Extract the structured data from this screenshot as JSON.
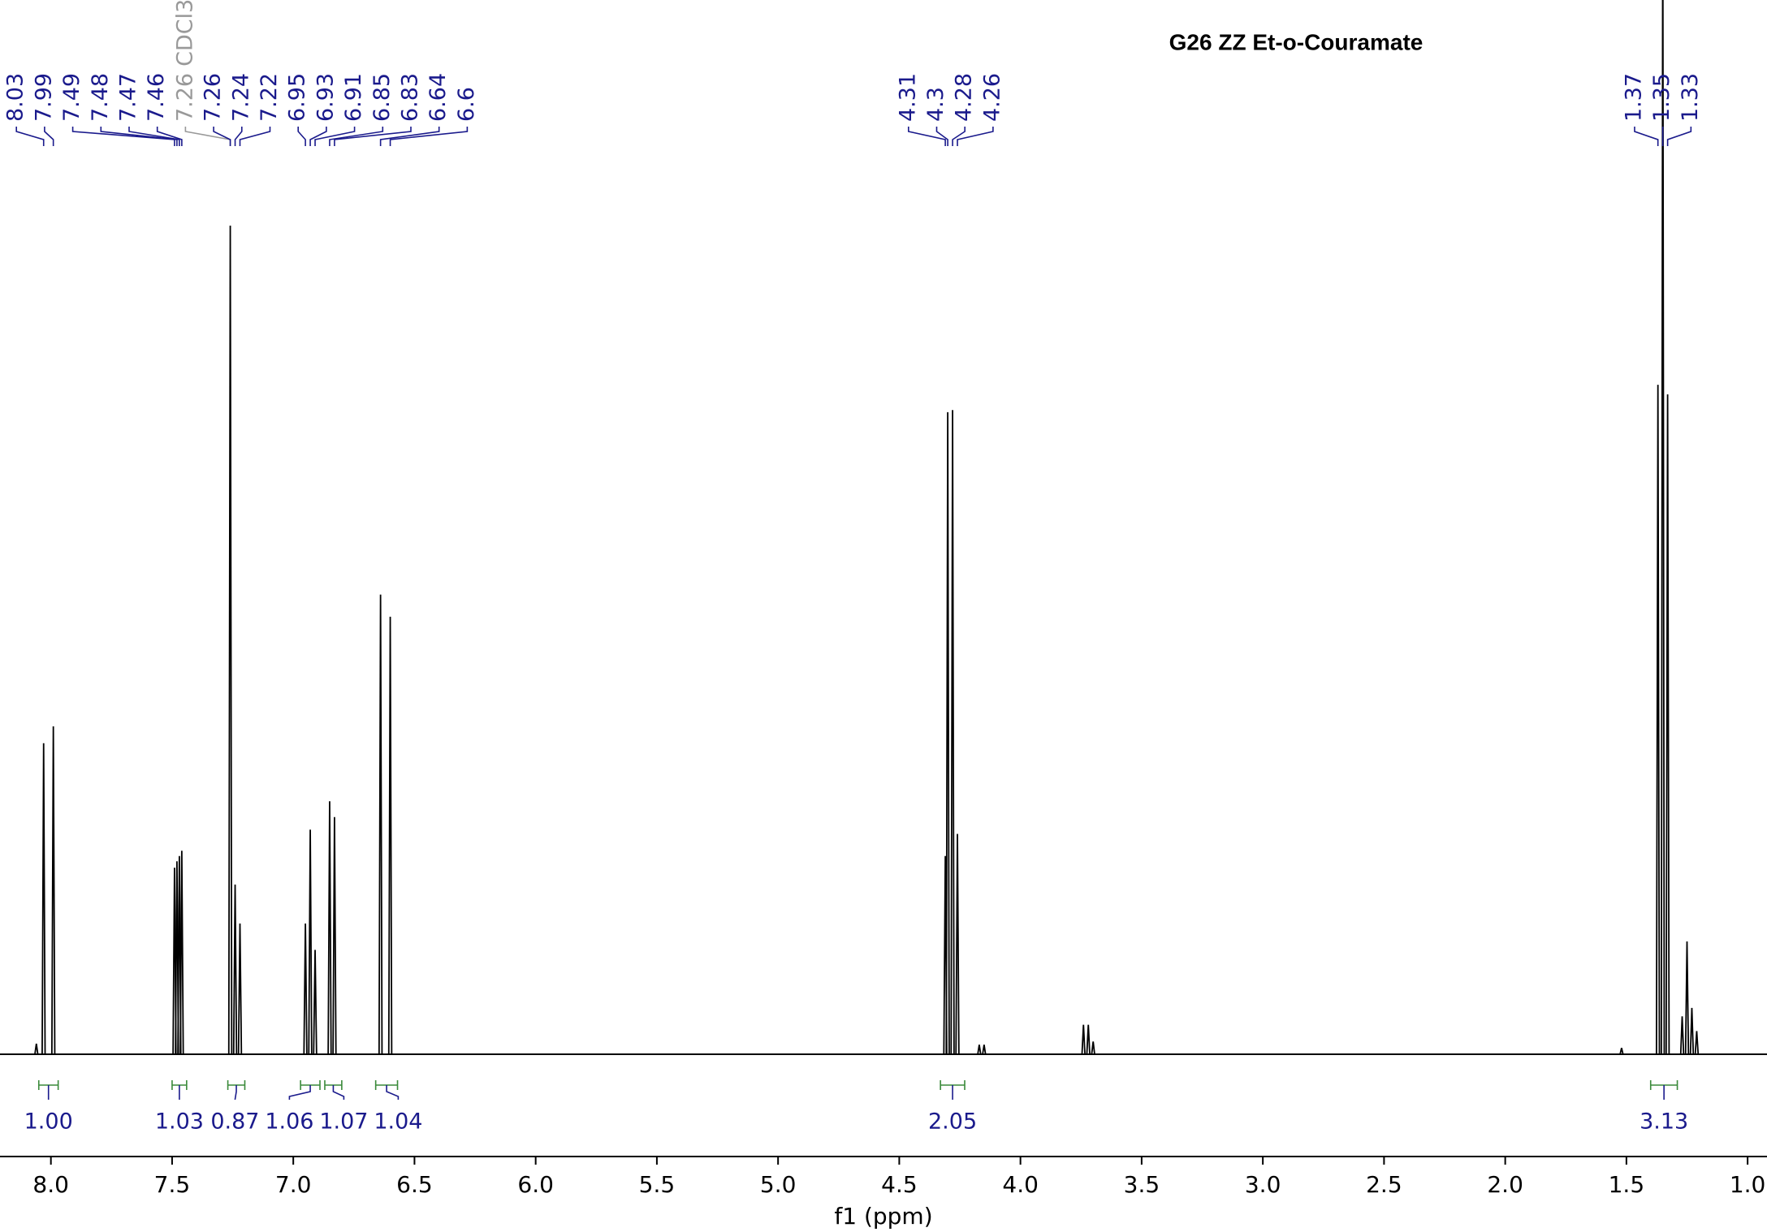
{
  "chart_data": {
    "type": "spectrum",
    "title": "G26 ZZ Et-o-Couramate",
    "xlabel": "f1 (ppm)",
    "xlim": [
      8.21,
      0.92
    ],
    "ylim": [
      0,
      100
    ],
    "xticks": [
      {
        "value": 8,
        "label": "8.0"
      },
      7.5,
      {
        "value": 7,
        "label": "7.0"
      },
      6.5,
      {
        "value": 6,
        "label": "6.0"
      },
      5.5,
      {
        "value": 5,
        "label": "5.0"
      },
      4.5,
      {
        "value": 4,
        "label": "4.0"
      },
      3.5,
      {
        "value": 3,
        "label": "3.0"
      },
      2.5,
      {
        "value": 2,
        "label": "2.0"
      },
      1.5,
      {
        "value": 1,
        "label": "1.0"
      }
    ],
    "color": "#000000",
    "series": [
      {
        "x": [
          8.06,
          8.03,
          7.99,
          7.49,
          7.48,
          7.47,
          7.46,
          7.26,
          7.24,
          7.22,
          6.95,
          6.93,
          6.91,
          6.85,
          6.83,
          6.64,
          6.6,
          4.31,
          4.3,
          4.28,
          4.26,
          4.17,
          4.15,
          3.74,
          3.72,
          3.7,
          1.52,
          1.37,
          1.35,
          1.33,
          1.27,
          1.25,
          1.23,
          1.21
        ],
        "values": [
          1.0,
          29.5,
          31.1,
          17.7,
          18.3,
          18.8,
          19.3,
          78.6,
          16.1,
          12.4,
          12.4,
          21.3,
          9.9,
          24.0,
          22.5,
          43.6,
          41.5,
          18.8,
          60.9,
          61.1,
          20.9,
          0.9,
          0.9,
          2.8,
          2.8,
          1.2,
          0.6,
          63.5,
          110,
          62.6,
          3.6,
          10.7,
          4.4,
          2.2
        ]
      }
    ],
    "peak_labels": [
      8.03,
      7.99,
      7.49,
      7.48,
      7.47,
      7.46,
      7.26,
      7.24,
      7.22,
      6.95,
      6.93,
      6.91,
      6.85,
      6.83,
      6.64,
      6.6,
      4.31,
      4.3,
      4.28,
      4.26,
      1.37,
      1.35,
      1.33
    ],
    "solvent": {
      "shift": 7.26,
      "label": "CDCl3"
    },
    "integrals": {
      "ranges": [
        [
          8.05,
          7.97
        ],
        [
          7.5,
          7.44
        ],
        [
          7.27,
          7.2
        ],
        [
          6.97,
          6.89
        ],
        [
          6.87,
          6.8
        ],
        [
          6.66,
          6.57
        ],
        [
          4.33,
          4.23
        ],
        [
          1.4,
          1.29
        ]
      ],
      "values": [
        1,
        1.03,
        0.87,
        1.06,
        1.07,
        1.04,
        2.05,
        3.13
      ],
      "value_labels": [
        "1.00",
        "1.03",
        "0.87",
        "1.06",
        "1.07",
        "1.04",
        "2.05",
        "3.13"
      ]
    }
  }
}
